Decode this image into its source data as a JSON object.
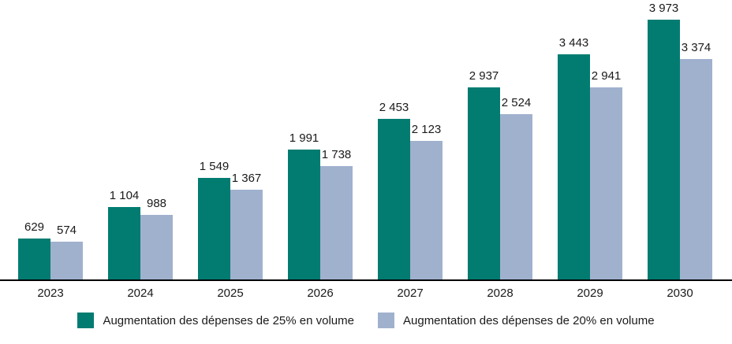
{
  "chart_data": {
    "type": "bar",
    "title": "",
    "xlabel": "",
    "ylabel": "",
    "grid": false,
    "legend_position": "bottom",
    "ylim": [
      0,
      3973
    ],
    "categories": [
      "2023",
      "2024",
      "2025",
      "2026",
      "2027",
      "2028",
      "2029",
      "2030"
    ],
    "series": [
      {
        "name": "Augmentation  des dépenses de 25% en volume",
        "color": "#027c71",
        "values": [
          629,
          1104,
          1549,
          1991,
          2453,
          2937,
          3443,
          3973
        ],
        "labels": [
          "629",
          "1 104",
          "1 549",
          "1 991",
          "2 453",
          "2 937",
          "3 443",
          "3 973"
        ]
      },
      {
        "name": "Augmentation  des dépenses de 20% en volume",
        "color": "#a0b1ce",
        "values": [
          574,
          988,
          1367,
          1738,
          2123,
          2524,
          2941,
          3374
        ],
        "labels": [
          "574",
          "988",
          "1 367",
          "1 738",
          "2 123",
          "2 524",
          "2 941",
          "3 374"
        ]
      }
    ]
  },
  "legend": {
    "items": [
      {
        "label": "Augmentation  des dépenses de 25% en volume",
        "color": "#027c71"
      },
      {
        "label": "Augmentation  des dépenses de 20% en volume",
        "color": "#a0b1ce"
      }
    ]
  }
}
